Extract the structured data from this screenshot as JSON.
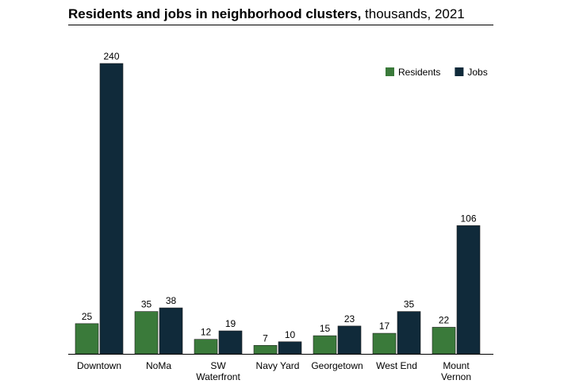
{
  "title": {
    "bold": "Residents and jobs in neighborhood clusters,",
    "rest": " thousands, 2021"
  },
  "chart_data": {
    "type": "bar",
    "categories": [
      [
        "Downtown"
      ],
      [
        "NoMa"
      ],
      [
        "SW",
        "Waterfront"
      ],
      [
        "Navy Yard"
      ],
      [
        "Georgetown"
      ],
      [
        "West End"
      ],
      [
        "Mount",
        "Vernon"
      ]
    ],
    "series": [
      {
        "name": "Residents",
        "color": "#3a7a3a",
        "values": [
          25,
          35,
          12,
          7,
          15,
          17,
          22
        ]
      },
      {
        "name": "Jobs",
        "color": "#102a3a",
        "values": [
          240,
          38,
          19,
          10,
          23,
          35,
          106
        ]
      }
    ],
    "ylim": [
      0,
      240
    ],
    "grid": false,
    "legend_position": "top-right",
    "xlabel": "",
    "ylabel": ""
  }
}
